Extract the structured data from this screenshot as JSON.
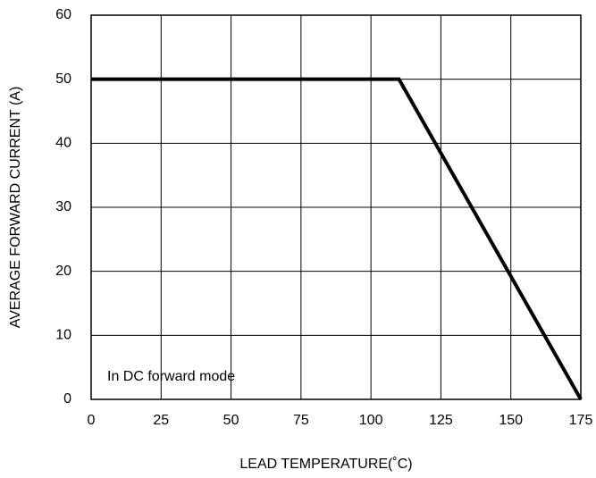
{
  "chart_data": {
    "type": "line",
    "xlabel": "LEAD TEMPERATURE(˚C)",
    "ylabel": "AVERAGE FORWARD CURRENT (A)",
    "annotations": [
      "In DC forward mode"
    ],
    "x": [
      0,
      110,
      175
    ],
    "series": [
      {
        "color": "#000000",
        "values": [
          50,
          50,
          0
        ]
      }
    ],
    "xlim": [
      0,
      175
    ],
    "xticks": [
      0,
      25,
      50,
      75,
      100,
      125,
      150,
      175
    ],
    "ylim": [
      0,
      60
    ],
    "yticks": [
      0,
      10,
      20,
      30,
      40,
      50,
      60
    ],
    "grid": true
  }
}
